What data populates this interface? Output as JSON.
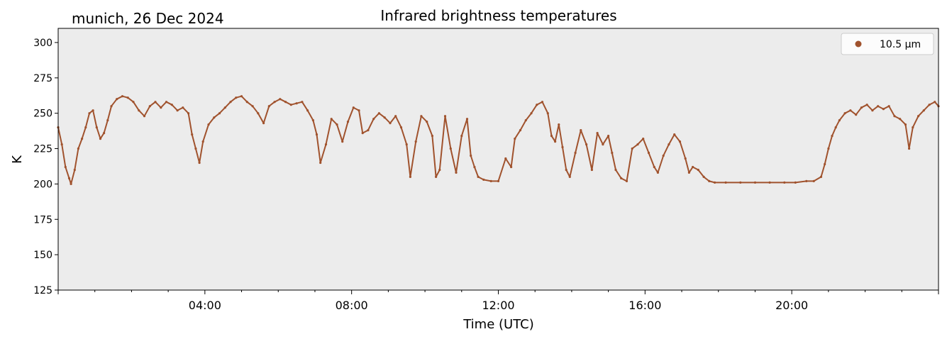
{
  "chart_data": {
    "type": "scatter",
    "title": "Infrared brightness temperatures",
    "subtitle": "munich, 26 Dec 2024",
    "xlabel": "Time (UTC)",
    "ylabel": "K",
    "xlim": [
      0,
      24
    ],
    "ylim": [
      125,
      310
    ],
    "x_ticks": [
      {
        "value": 4,
        "label": "04:00"
      },
      {
        "value": 8,
        "label": "08:00"
      },
      {
        "value": 12,
        "label": "12:00"
      },
      {
        "value": 16,
        "label": "16:00"
      },
      {
        "value": 20,
        "label": "20:00"
      }
    ],
    "y_ticks": [
      125,
      150,
      175,
      200,
      225,
      250,
      275,
      300
    ],
    "grid": false,
    "background": "#ececec",
    "legend_position": "top-right",
    "series": [
      {
        "name": "10.5 µm",
        "color": "#a0522d",
        "x_unit": "hours since 00:00 UTC",
        "points": [
          [
            0.0,
            240
          ],
          [
            0.1,
            228
          ],
          [
            0.2,
            212
          ],
          [
            0.3,
            204
          ],
          [
            0.35,
            200
          ],
          [
            0.45,
            210
          ],
          [
            0.55,
            225
          ],
          [
            0.65,
            232
          ],
          [
            0.75,
            240
          ],
          [
            0.85,
            250
          ],
          [
            0.95,
            252
          ],
          [
            1.05,
            240
          ],
          [
            1.15,
            232
          ],
          [
            1.25,
            236
          ],
          [
            1.35,
            245
          ],
          [
            1.45,
            255
          ],
          [
            1.6,
            260
          ],
          [
            1.75,
            262
          ],
          [
            1.9,
            261
          ],
          [
            2.05,
            258
          ],
          [
            2.2,
            252
          ],
          [
            2.35,
            248
          ],
          [
            2.5,
            255
          ],
          [
            2.65,
            258
          ],
          [
            2.8,
            254
          ],
          [
            2.95,
            258
          ],
          [
            3.1,
            256
          ],
          [
            3.25,
            252
          ],
          [
            3.4,
            254
          ],
          [
            3.55,
            250
          ],
          [
            3.65,
            235
          ],
          [
            3.75,
            225
          ],
          [
            3.85,
            215
          ],
          [
            3.95,
            230
          ],
          [
            4.1,
            242
          ],
          [
            4.25,
            247
          ],
          [
            4.4,
            250
          ],
          [
            4.55,
            254
          ],
          [
            4.7,
            258
          ],
          [
            4.85,
            261
          ],
          [
            5.0,
            262
          ],
          [
            5.15,
            258
          ],
          [
            5.3,
            255
          ],
          [
            5.45,
            250
          ],
          [
            5.6,
            243
          ],
          [
            5.75,
            255
          ],
          [
            5.9,
            258
          ],
          [
            6.05,
            260
          ],
          [
            6.2,
            258
          ],
          [
            6.35,
            256
          ],
          [
            6.5,
            257
          ],
          [
            6.65,
            258
          ],
          [
            6.8,
            252
          ],
          [
            6.95,
            245
          ],
          [
            7.05,
            235
          ],
          [
            7.15,
            215
          ],
          [
            7.3,
            228
          ],
          [
            7.45,
            246
          ],
          [
            7.6,
            242
          ],
          [
            7.75,
            230
          ],
          [
            7.9,
            244
          ],
          [
            8.05,
            254
          ],
          [
            8.2,
            252
          ],
          [
            8.3,
            236
          ],
          [
            8.45,
            238
          ],
          [
            8.6,
            246
          ],
          [
            8.75,
            250
          ],
          [
            8.9,
            247
          ],
          [
            9.05,
            243
          ],
          [
            9.2,
            248
          ],
          [
            9.35,
            240
          ],
          [
            9.5,
            228
          ],
          [
            9.6,
            205
          ],
          [
            9.75,
            230
          ],
          [
            9.9,
            248
          ],
          [
            10.05,
            244
          ],
          [
            10.2,
            234
          ],
          [
            10.3,
            205
          ],
          [
            10.4,
            210
          ],
          [
            10.55,
            248
          ],
          [
            10.7,
            225
          ],
          [
            10.85,
            208
          ],
          [
            11.0,
            234
          ],
          [
            11.15,
            246
          ],
          [
            11.25,
            220
          ],
          [
            11.35,
            212
          ],
          [
            11.45,
            205
          ],
          [
            11.6,
            203
          ],
          [
            11.8,
            202
          ],
          [
            12.0,
            202
          ],
          [
            12.2,
            218
          ],
          [
            12.35,
            212
          ],
          [
            12.45,
            232
          ],
          [
            12.6,
            238
          ],
          [
            12.75,
            245
          ],
          [
            12.9,
            250
          ],
          [
            13.05,
            256
          ],
          [
            13.2,
            258
          ],
          [
            13.35,
            250
          ],
          [
            13.45,
            234
          ],
          [
            13.55,
            230
          ],
          [
            13.65,
            242
          ],
          [
            13.75,
            226
          ],
          [
            13.85,
            210
          ],
          [
            13.95,
            205
          ],
          [
            14.1,
            222
          ],
          [
            14.25,
            238
          ],
          [
            14.4,
            228
          ],
          [
            14.55,
            210
          ],
          [
            14.7,
            236
          ],
          [
            14.85,
            228
          ],
          [
            15.0,
            234
          ],
          [
            15.1,
            222
          ],
          [
            15.2,
            210
          ],
          [
            15.35,
            204
          ],
          [
            15.5,
            202
          ],
          [
            15.65,
            225
          ],
          [
            15.8,
            228
          ],
          [
            15.95,
            232
          ],
          [
            16.1,
            222
          ],
          [
            16.25,
            212
          ],
          [
            16.35,
            208
          ],
          [
            16.5,
            220
          ],
          [
            16.65,
            228
          ],
          [
            16.8,
            235
          ],
          [
            16.95,
            230
          ],
          [
            17.1,
            218
          ],
          [
            17.2,
            208
          ],
          [
            17.3,
            212
          ],
          [
            17.45,
            210
          ],
          [
            17.6,
            205
          ],
          [
            17.75,
            202
          ],
          [
            17.9,
            201
          ],
          [
            18.2,
            201
          ],
          [
            18.6,
            201
          ],
          [
            19.0,
            201
          ],
          [
            19.4,
            201
          ],
          [
            19.8,
            201
          ],
          [
            20.1,
            201
          ],
          [
            20.4,
            202
          ],
          [
            20.6,
            202
          ],
          [
            20.8,
            205
          ],
          [
            20.9,
            214
          ],
          [
            21.0,
            225
          ],
          [
            21.1,
            234
          ],
          [
            21.2,
            240
          ],
          [
            21.3,
            245
          ],
          [
            21.45,
            250
          ],
          [
            21.6,
            252
          ],
          [
            21.75,
            249
          ],
          [
            21.9,
            254
          ],
          [
            22.05,
            256
          ],
          [
            22.2,
            252
          ],
          [
            22.35,
            255
          ],
          [
            22.5,
            253
          ],
          [
            22.65,
            255
          ],
          [
            22.8,
            248
          ],
          [
            22.95,
            246
          ],
          [
            23.1,
            242
          ],
          [
            23.2,
            225
          ],
          [
            23.3,
            240
          ],
          [
            23.45,
            248
          ],
          [
            23.6,
            252
          ],
          [
            23.75,
            256
          ],
          [
            23.9,
            258
          ],
          [
            24.0,
            255
          ]
        ]
      }
    ]
  }
}
